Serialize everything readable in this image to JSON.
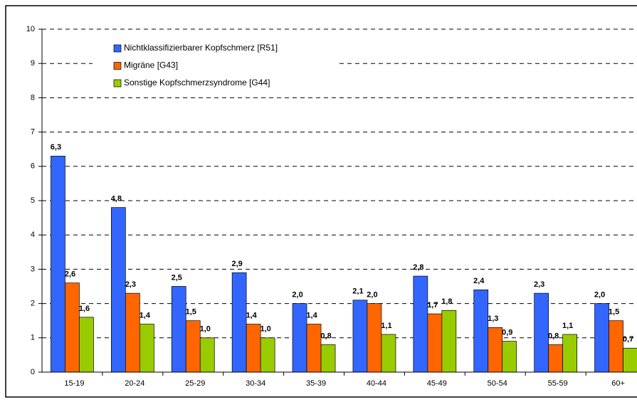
{
  "chart_data": {
    "type": "bar",
    "categories": [
      "15-19",
      "20-24",
      "25-29",
      "30-34",
      "35-39",
      "40-44",
      "45-49",
      "50-54",
      "55-59",
      "60+"
    ],
    "series": [
      {
        "name": "Nichtklassifizierbarer Kopfschmerz [R51]",
        "color": "#3366ff",
        "values": [
          6.3,
          4.8,
          2.5,
          2.9,
          2.0,
          2.1,
          2.8,
          2.4,
          2.3,
          2.0
        ],
        "value_labels": [
          "6,3",
          "4,8",
          "2,5",
          "2,9",
          "2,0",
          "2,1",
          "2,8",
          "2,4",
          "2,3",
          "2,0"
        ]
      },
      {
        "name": "Migräne [G43]",
        "color": "#ff6600",
        "values": [
          2.6,
          2.3,
          1.5,
          1.4,
          1.4,
          2.0,
          1.7,
          1.3,
          0.8,
          1.5
        ],
        "value_labels": [
          "2,6",
          "2,3",
          "1,5",
          "1,4",
          "1,4",
          "2,0",
          "1,7",
          "1,3",
          "0,8",
          "1,5"
        ]
      },
      {
        "name": "Sonstige Kopfschmerzsyndrome [G44]",
        "color": "#99cc00",
        "values": [
          1.6,
          1.4,
          1.0,
          1.0,
          0.8,
          1.1,
          1.8,
          0.9,
          1.1,
          0.7
        ],
        "value_labels": [
          "1,6",
          "1,4",
          "1,0",
          "1,0",
          "0,8",
          "1,1",
          "1,8",
          "0,9",
          "1,1",
          "0,7"
        ]
      }
    ],
    "ylim": [
      0,
      10
    ],
    "yticks": [
      0,
      1,
      2,
      3,
      4,
      5,
      6,
      7,
      8,
      9,
      10
    ],
    "grid": true,
    "legend": "top-left"
  }
}
